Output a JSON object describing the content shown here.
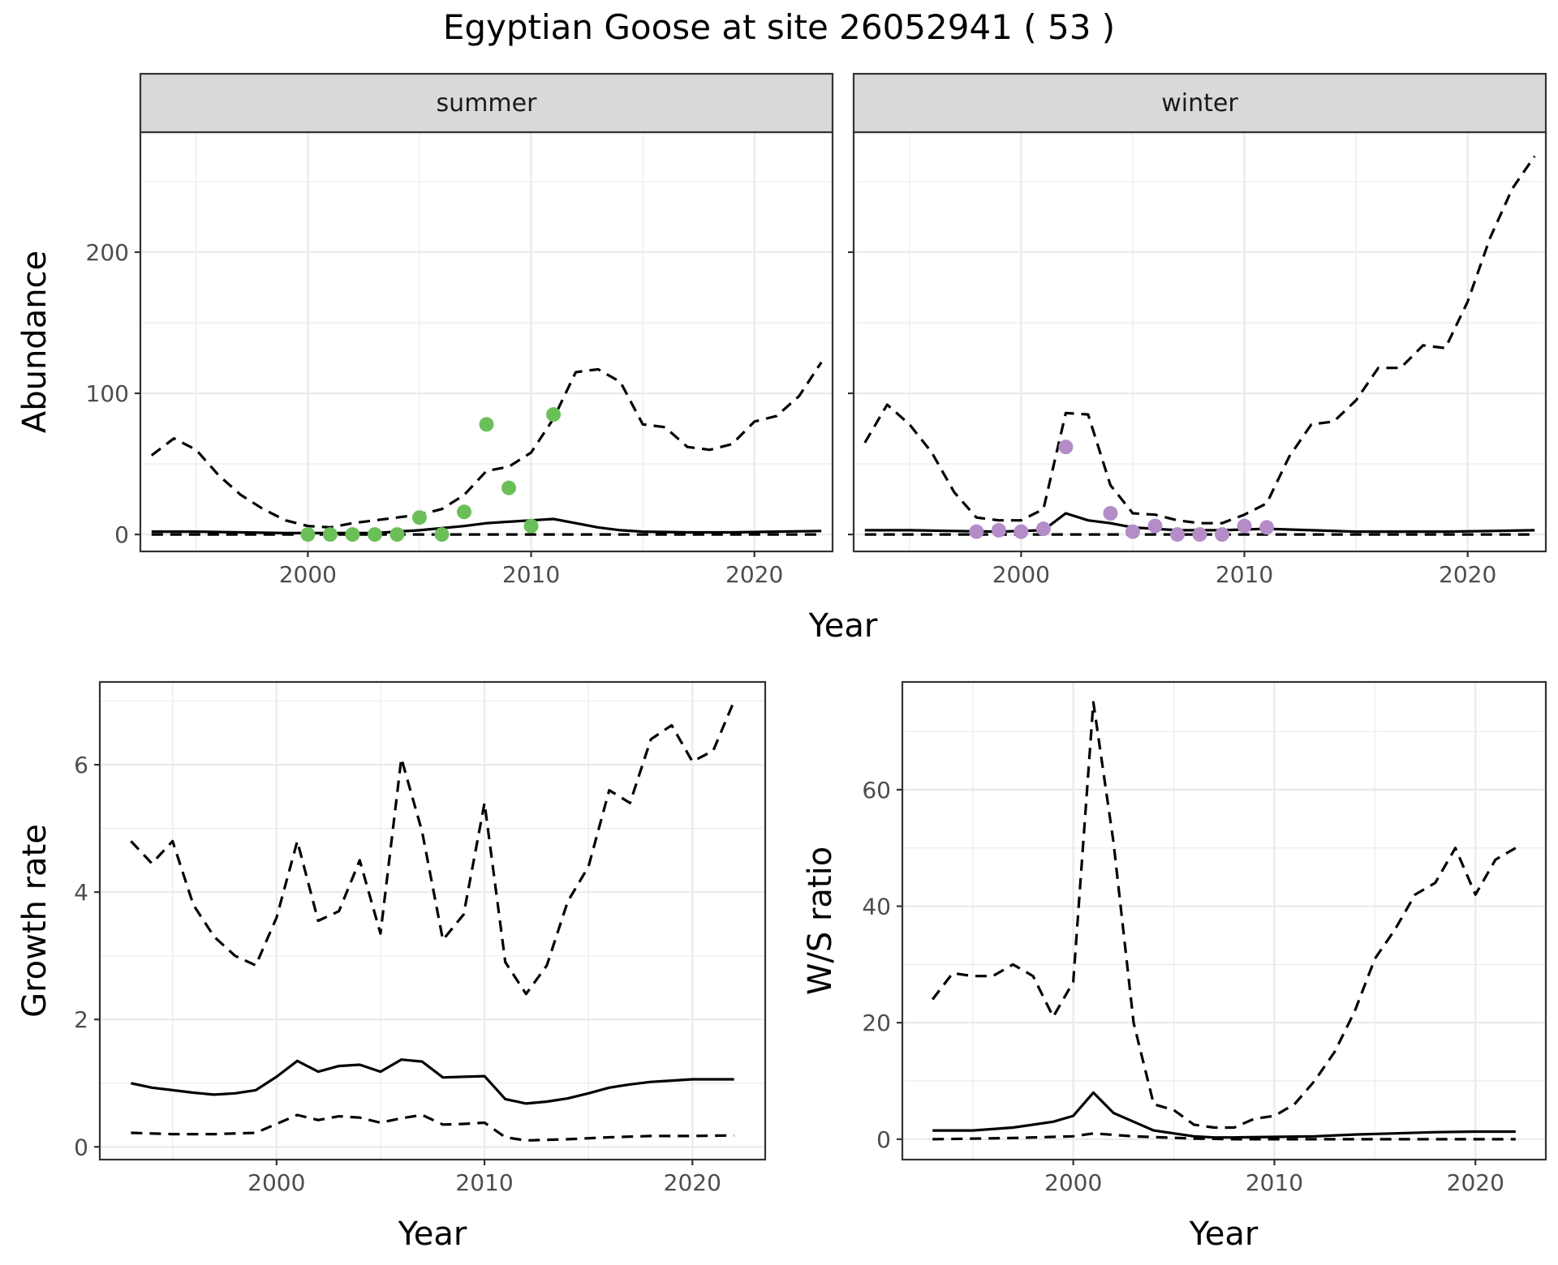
{
  "title": "Egyptian Goose at site 26052941 ( 53 )",
  "colors": {
    "summer": "#6abf59",
    "winter": "#b48cc8",
    "line": "#000000",
    "grid": "#ebebeb",
    "strip": "#d9d9d9"
  },
  "chart_data": [
    {
      "id": "abundance",
      "type": "line",
      "facets": [
        "summer",
        "winter"
      ],
      "xlabel": "Year",
      "ylabel": "Abundance",
      "xlim": [
        1992.5,
        2023.5
      ],
      "ylim": [
        -12,
        285
      ],
      "xticks": [
        2000,
        2010,
        2020
      ],
      "yticks": [
        0,
        100,
        200
      ],
      "grid": true,
      "panels": [
        {
          "name": "summer",
          "estimate": {
            "x": [
              1993,
              1995,
              1997,
              1999,
              2001,
              2003,
              2005,
              2007,
              2008,
              2009,
              2010,
              2011,
              2012,
              2013,
              2014,
              2015,
              2017,
              2019,
              2021,
              2023
            ],
            "y": [
              2,
              2,
              1.5,
              1,
              1,
              1,
              3,
              6,
              8,
              9,
              10,
              11,
              8,
              5,
              3,
              2,
              1.5,
              1.5,
              2,
              2.5
            ]
          },
          "upper": {
            "x": [
              1993,
              1994,
              1995,
              1996,
              1997,
              1998,
              1999,
              2000,
              2001,
              2002,
              2003,
              2004,
              2005,
              2006,
              2007,
              2008,
              2009,
              2010,
              2011,
              2012,
              2013,
              2014,
              2015,
              2016,
              2017,
              2018,
              2019,
              2020,
              2021,
              2022,
              2023
            ],
            "y": [
              56,
              68,
              60,
              42,
              28,
              18,
              10,
              6,
              5,
              8,
              10,
              12,
              14,
              18,
              28,
              45,
              48,
              58,
              82,
              115,
              117,
              108,
              78,
              76,
              62,
              60,
              64,
              80,
              84,
              98,
              122
            ]
          },
          "lower": {
            "x": [
              1993,
              2023
            ],
            "y": [
              0,
              0
            ]
          },
          "points": {
            "x": [
              2000,
              2001,
              2002,
              2003,
              2004,
              2005,
              2006,
              2007,
              2008,
              2009,
              2010,
              2011
            ],
            "y": [
              0,
              0,
              0,
              0,
              0,
              12,
              0,
              16,
              78,
              33,
              6,
              85
            ]
          }
        },
        {
          "name": "winter",
          "estimate": {
            "x": [
              1993,
              1995,
              1997,
              1999,
              2001,
              2002,
              2003,
              2004,
              2005,
              2007,
              2009,
              2011,
              2013,
              2015,
              2017,
              2019,
              2021,
              2023
            ],
            "y": [
              3,
              3,
              2.5,
              2,
              3,
              15,
              10,
              8,
              5,
              3,
              3,
              4,
              3,
              2,
              2,
              2,
              2.5,
              3
            ]
          },
          "upper": {
            "x": [
              1993,
              1994,
              1995,
              1996,
              1997,
              1998,
              1999,
              2000,
              2001,
              2002,
              2003,
              2004,
              2005,
              2006,
              2007,
              2008,
              2009,
              2010,
              2011,
              2012,
              2013,
              2014,
              2015,
              2016,
              2017,
              2018,
              2019,
              2020,
              2021,
              2022,
              2023
            ],
            "y": [
              65,
              92,
              78,
              58,
              30,
              12,
              10,
              10,
              18,
              86,
              85,
              35,
              15,
              14,
              10,
              8,
              8,
              14,
              22,
              55,
              78,
              80,
              95,
              118,
              118,
              134,
              132,
              165,
              210,
              245,
              268
            ]
          },
          "lower": {
            "x": [
              1993,
              2023
            ],
            "y": [
              0,
              0
            ]
          },
          "points": {
            "x": [
              1998,
              1999,
              2000,
              2001,
              2002,
              2004,
              2005,
              2006,
              2007,
              2008,
              2009,
              2010,
              2011
            ],
            "y": [
              2,
              3,
              2,
              4,
              62,
              15,
              2,
              6,
              0,
              0,
              0,
              6,
              5
            ]
          }
        }
      ]
    },
    {
      "id": "growth",
      "type": "line",
      "xlabel": "Year",
      "ylabel": "Growth rate",
      "xlim": [
        1991.5,
        2023.5
      ],
      "ylim": [
        -0.2,
        7.3
      ],
      "xticks": [
        2000,
        2010,
        2020
      ],
      "yticks": [
        0,
        2,
        4,
        6
      ],
      "grid": true,
      "estimate": {
        "x": [
          1993,
          1994,
          1995,
          1996,
          1997,
          1998,
          1999,
          2000,
          2001,
          2002,
          2003,
          2004,
          2005,
          2006,
          2007,
          2008,
          2009,
          2010,
          2011,
          2012,
          2013,
          2014,
          2015,
          2016,
          2017,
          2018,
          2019,
          2020,
          2021,
          2022
        ],
        "y": [
          1.0,
          0.93,
          0.89,
          0.85,
          0.82,
          0.84,
          0.89,
          1.1,
          1.35,
          1.18,
          1.27,
          1.29,
          1.18,
          1.37,
          1.34,
          1.09,
          1.1,
          1.11,
          0.75,
          0.68,
          0.71,
          0.76,
          0.84,
          0.93,
          0.98,
          1.02,
          1.04,
          1.06,
          1.06,
          1.06
        ]
      },
      "upper": {
        "x": [
          1993,
          1994,
          1995,
          1996,
          1997,
          1998,
          1999,
          2000,
          2001,
          2002,
          2003,
          2004,
          2005,
          2006,
          2007,
          2008,
          2009,
          2010,
          2011,
          2012,
          2013,
          2014,
          2015,
          2016,
          2017,
          2018,
          2019,
          2020,
          2021,
          2022
        ],
        "y": [
          4.8,
          4.45,
          4.8,
          3.8,
          3.3,
          3.0,
          2.85,
          3.6,
          4.8,
          3.55,
          3.7,
          4.5,
          3.35,
          6.1,
          4.95,
          3.25,
          3.65,
          5.4,
          2.9,
          2.4,
          2.85,
          3.85,
          4.4,
          5.6,
          5.4,
          6.4,
          6.62,
          6.05,
          6.22,
          7.0
        ]
      },
      "lower": {
        "x": [
          1993,
          1995,
          1997,
          1999,
          2001,
          2002,
          2003,
          2004,
          2005,
          2006,
          2007,
          2008,
          2009,
          2010,
          2011,
          2012,
          2014,
          2016,
          2018,
          2020,
          2022
        ],
        "y": [
          0.22,
          0.2,
          0.2,
          0.22,
          0.5,
          0.42,
          0.48,
          0.46,
          0.38,
          0.45,
          0.5,
          0.35,
          0.36,
          0.38,
          0.15,
          0.1,
          0.12,
          0.15,
          0.17,
          0.17,
          0.18
        ]
      }
    },
    {
      "id": "ws_ratio",
      "type": "line",
      "xlabel": "Year",
      "ylabel": "W/S ratio",
      "xlim": [
        1991.5,
        2023.5
      ],
      "ylim": [
        -3.5,
        78.5
      ],
      "xticks": [
        2000,
        2010,
        2020
      ],
      "yticks": [
        0,
        20,
        40,
        60
      ],
      "grid": true,
      "estimate": {
        "x": [
          1993,
          1995,
          1997,
          1999,
          2000,
          2001,
          2002,
          2003,
          2004,
          2005,
          2006,
          2007,
          2008,
          2010,
          2012,
          2014,
          2016,
          2018,
          2020,
          2022
        ],
        "y": [
          1.5,
          1.5,
          2,
          3,
          4,
          8,
          4.5,
          3,
          1.5,
          1,
          0.5,
          0.3,
          0.3,
          0.4,
          0.5,
          0.8,
          1.0,
          1.2,
          1.3,
          1.3
        ]
      },
      "upper": {
        "x": [
          1993,
          1994,
          1995,
          1996,
          1997,
          1998,
          1999,
          2000,
          2001,
          2002,
          2003,
          2004,
          2005,
          2006,
          2007,
          2008,
          2009,
          2010,
          2011,
          2012,
          2013,
          2014,
          2015,
          2016,
          2017,
          2018,
          2019,
          2020,
          2021,
          2022
        ],
        "y": [
          24,
          28.5,
          28,
          28,
          30,
          28,
          21,
          27,
          75,
          51,
          20,
          6,
          5,
          2.5,
          2,
          2,
          3.5,
          4,
          6,
          10,
          15,
          22,
          31,
          36,
          42,
          44,
          50,
          42,
          48,
          50
        ]
      },
      "lower": {
        "x": [
          1993,
          1997,
          2000,
          2001,
          2003,
          2006,
          2008,
          2010,
          2014,
          2018,
          2022
        ],
        "y": [
          0,
          0.2,
          0.5,
          1,
          0.5,
          0.1,
          0,
          0,
          0,
          0,
          0
        ]
      }
    }
  ]
}
